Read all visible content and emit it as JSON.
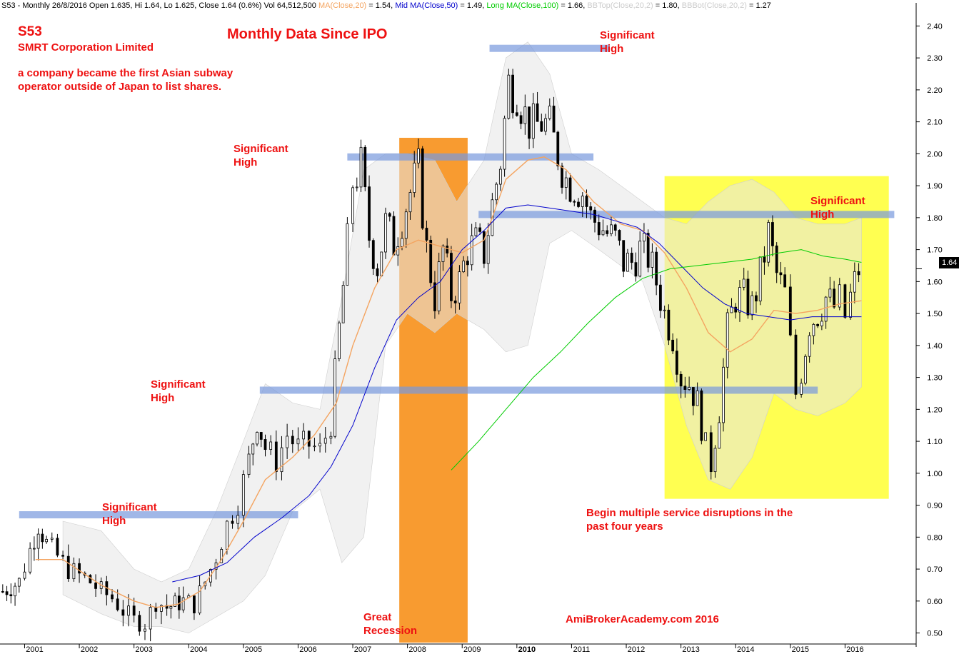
{
  "header": {
    "ticker_line": "S53 - Monthly 26/8/2016 Open 1.635, Hi 1.64, Lo 1.625, Close 1.64 (0.6%) Vol 64,512,500",
    "ma20_label": "MA(Close,20)",
    "ma20_value": " = 1.54,",
    "mid_label": "Mid MA(Close,50)",
    "mid_value": " = 1.49,",
    "long_label": "Long MA(Close,100)",
    "long_value": " = 1.66,",
    "bbtop_label": "BBTop(Close,20,2)",
    "bbtop_value": " = 1.80,",
    "bbbot_label": "BBBot(Close,20,2)",
    "bbbot_value": " = 1.27"
  },
  "titles": {
    "ticker": "S53",
    "company": "SMRT Corporation Limited",
    "description": "a company became the first Asian subway operator outside of Japan to list shares.",
    "main_title": "Monthly Data Since IPO",
    "recession": "Great Recession",
    "disruption": "Begin multiple service disruptions in the past four years",
    "watermark": "AmiBrokerAcademy.com  2016",
    "last_price": "1.64"
  },
  "significant_high_labels": [
    "Significant High",
    "Significant High",
    "Significant High",
    "Significant High",
    "Significant High"
  ],
  "colors": {
    "ma20": "#f4a460",
    "ma50": "#0000cc",
    "ma100": "#00cc00",
    "bollinger_fill": "#e6e6e6",
    "recession_band": "#f7931e",
    "disruption_band": "#ffff33",
    "significant_line": "#7799dd",
    "annotation": "#ee1111"
  },
  "chart_data": {
    "type": "candlestick",
    "title": "Monthly Data Since IPO",
    "y_axis": {
      "ticks": [
        0.5,
        0.6,
        0.7,
        0.8,
        0.9,
        1.0,
        1.1,
        1.2,
        1.3,
        1.4,
        1.5,
        1.6,
        1.7,
        1.8,
        1.9,
        2.0,
        2.1,
        2.2,
        2.3,
        2.4
      ],
      "ylim": [
        0.47,
        2.45
      ],
      "side": "right"
    },
    "x_axis": {
      "labels": [
        "2001",
        "2002",
        "2003",
        "2004",
        "2005",
        "2006",
        "2007",
        "2008",
        "2009",
        "2010",
        "2011",
        "2012",
        "2013",
        "2014",
        "2015",
        "2016"
      ],
      "range": [
        2000.55,
        2017.3
      ]
    },
    "grid": false,
    "candle_anchors": [
      [
        2000.6,
        0.63
      ],
      [
        2000.9,
        0.66
      ],
      [
        2001.1,
        0.76
      ],
      [
        2001.25,
        0.84
      ],
      [
        2001.4,
        0.78
      ],
      [
        2001.6,
        0.74
      ],
      [
        2001.8,
        0.7
      ],
      [
        2002.0,
        0.68
      ],
      [
        2002.2,
        0.66
      ],
      [
        2002.4,
        0.63
      ],
      [
        2002.6,
        0.61
      ],
      [
        2002.8,
        0.57
      ],
      [
        2003.0,
        0.54
      ],
      [
        2003.2,
        0.53
      ],
      [
        2003.4,
        0.6
      ],
      [
        2003.6,
        0.58
      ],
      [
        2003.9,
        0.6
      ],
      [
        2004.1,
        0.59
      ],
      [
        2004.3,
        0.66
      ],
      [
        2004.5,
        0.74
      ],
      [
        2004.7,
        0.84
      ],
      [
        2004.9,
        0.91
      ],
      [
        2005.1,
        1.04
      ],
      [
        2005.25,
        1.17
      ],
      [
        2005.4,
        1.08
      ],
      [
        2005.6,
        1.04
      ],
      [
        2005.8,
        1.12
      ],
      [
        2006.0,
        1.08
      ],
      [
        2006.2,
        1.09
      ],
      [
        2006.4,
        1.07
      ],
      [
        2006.6,
        1.16
      ],
      [
        2006.75,
        1.45
      ],
      [
        2006.9,
        1.72
      ],
      [
        2007.0,
        1.91
      ],
      [
        2007.15,
        1.96
      ],
      [
        2007.3,
        1.74
      ],
      [
        2007.45,
        1.65
      ],
      [
        2007.6,
        1.78
      ],
      [
        2007.75,
        1.72
      ],
      [
        2007.9,
        1.8
      ],
      [
        2008.05,
        1.88
      ],
      [
        2008.2,
        1.95
      ],
      [
        2008.35,
        1.7
      ],
      [
        2008.5,
        1.55
      ],
      [
        2008.65,
        1.7
      ],
      [
        2008.8,
        1.56
      ],
      [
        2008.95,
        1.6
      ],
      [
        2009.1,
        1.7
      ],
      [
        2009.25,
        1.72
      ],
      [
        2009.4,
        1.69
      ],
      [
        2009.55,
        1.84
      ],
      [
        2009.7,
        1.98
      ],
      [
        2009.85,
        2.22
      ],
      [
        2010.0,
        2.2
      ],
      [
        2010.15,
        2.12
      ],
      [
        2010.3,
        2.08
      ],
      [
        2010.45,
        2.1
      ],
      [
        2010.6,
        2.08
      ],
      [
        2010.75,
        2.0
      ],
      [
        2010.9,
        1.92
      ],
      [
        2011.05,
        1.9
      ],
      [
        2011.2,
        1.88
      ],
      [
        2011.35,
        1.8
      ],
      [
        2011.5,
        1.78
      ],
      [
        2011.65,
        1.75
      ],
      [
        2011.8,
        1.73
      ],
      [
        2011.95,
        1.66
      ],
      [
        2012.1,
        1.66
      ],
      [
        2012.25,
        1.7
      ],
      [
        2012.4,
        1.68
      ],
      [
        2012.55,
        1.6
      ],
      [
        2012.7,
        1.5
      ],
      [
        2012.85,
        1.43
      ],
      [
        2013.0,
        1.3
      ],
      [
        2013.15,
        1.28
      ],
      [
        2013.3,
        1.22
      ],
      [
        2013.45,
        1.08
      ],
      [
        2013.55,
        1.03
      ],
      [
        2013.7,
        1.2
      ],
      [
        2013.85,
        1.45
      ],
      [
        2014.0,
        1.55
      ],
      [
        2014.15,
        1.55
      ],
      [
        2014.3,
        1.52
      ],
      [
        2014.45,
        1.62
      ],
      [
        2014.6,
        1.75
      ],
      [
        2014.75,
        1.62
      ],
      [
        2014.9,
        1.56
      ],
      [
        2015.0,
        1.4
      ],
      [
        2015.1,
        1.25
      ],
      [
        2015.2,
        1.32
      ],
      [
        2015.35,
        1.47
      ],
      [
        2015.5,
        1.5
      ],
      [
        2015.65,
        1.55
      ],
      [
        2015.8,
        1.52
      ],
      [
        2015.9,
        1.54
      ],
      [
        2016.0,
        1.49
      ],
      [
        2016.1,
        1.55
      ],
      [
        2016.25,
        1.64
      ]
    ],
    "ma20": [
      [
        2001.2,
        0.73
      ],
      [
        2001.7,
        0.73
      ],
      [
        2002.4,
        0.65
      ],
      [
        2003.0,
        0.6
      ],
      [
        2003.4,
        0.58
      ],
      [
        2003.8,
        0.59
      ],
      [
        2004.2,
        0.63
      ],
      [
        2004.6,
        0.73
      ],
      [
        2005.0,
        0.85
      ],
      [
        2005.4,
        0.98
      ],
      [
        2005.9,
        1.05
      ],
      [
        2006.3,
        1.12
      ],
      [
        2006.7,
        1.22
      ],
      [
        2007.0,
        1.4
      ],
      [
        2007.4,
        1.58
      ],
      [
        2007.8,
        1.7
      ],
      [
        2008.2,
        1.73
      ],
      [
        2008.6,
        1.71
      ],
      [
        2009.0,
        1.69
      ],
      [
        2009.4,
        1.73
      ],
      [
        2009.8,
        1.92
      ],
      [
        2010.2,
        1.98
      ],
      [
        2010.5,
        1.99
      ],
      [
        2010.9,
        1.95
      ],
      [
        2011.4,
        1.85
      ],
      [
        2011.9,
        1.78
      ],
      [
        2012.3,
        1.76
      ],
      [
        2012.7,
        1.69
      ],
      [
        2013.1,
        1.58
      ],
      [
        2013.5,
        1.44
      ],
      [
        2013.9,
        1.38
      ],
      [
        2014.3,
        1.42
      ],
      [
        2014.7,
        1.51
      ],
      [
        2015.1,
        1.5
      ],
      [
        2015.5,
        1.51
      ],
      [
        2015.9,
        1.53
      ],
      [
        2016.3,
        1.54
      ]
    ],
    "ma50": [
      [
        2003.7,
        0.66
      ],
      [
        2004.2,
        0.68
      ],
      [
        2004.7,
        0.72
      ],
      [
        2005.2,
        0.8
      ],
      [
        2005.7,
        0.86
      ],
      [
        2006.2,
        0.93
      ],
      [
        2006.6,
        1.02
      ],
      [
        2007.0,
        1.15
      ],
      [
        2007.4,
        1.33
      ],
      [
        2007.8,
        1.48
      ],
      [
        2008.2,
        1.55
      ],
      [
        2008.6,
        1.6
      ],
      [
        2009.0,
        1.7
      ],
      [
        2009.4,
        1.76
      ],
      [
        2009.8,
        1.83
      ],
      [
        2010.2,
        1.84
      ],
      [
        2010.6,
        1.83
      ],
      [
        2011.0,
        1.82
      ],
      [
        2011.4,
        1.81
      ],
      [
        2011.8,
        1.79
      ],
      [
        2012.2,
        1.77
      ],
      [
        2012.6,
        1.72
      ],
      [
        2013.0,
        1.65
      ],
      [
        2013.4,
        1.58
      ],
      [
        2013.8,
        1.53
      ],
      [
        2014.2,
        1.5
      ],
      [
        2014.6,
        1.49
      ],
      [
        2015.0,
        1.48
      ],
      [
        2015.4,
        1.49
      ],
      [
        2015.9,
        1.49
      ],
      [
        2016.3,
        1.49
      ]
    ],
    "ma100": [
      [
        2008.8,
        1.01
      ],
      [
        2009.3,
        1.1
      ],
      [
        2009.8,
        1.2
      ],
      [
        2010.3,
        1.3
      ],
      [
        2010.8,
        1.38
      ],
      [
        2011.3,
        1.47
      ],
      [
        2011.8,
        1.55
      ],
      [
        2012.3,
        1.61
      ],
      [
        2012.8,
        1.64
      ],
      [
        2013.3,
        1.65
      ],
      [
        2013.8,
        1.66
      ],
      [
        2014.3,
        1.67
      ],
      [
        2014.8,
        1.69
      ],
      [
        2015.2,
        1.7
      ],
      [
        2015.6,
        1.68
      ],
      [
        2016.0,
        1.67
      ],
      [
        2016.3,
        1.66
      ]
    ],
    "bollinger": {
      "upper": [
        [
          2001.7,
          0.85
        ],
        [
          2002.4,
          0.82
        ],
        [
          2003.0,
          0.7
        ],
        [
          2003.5,
          0.66
        ],
        [
          2004.0,
          0.7
        ],
        [
          2004.5,
          0.88
        ],
        [
          2005.0,
          1.1
        ],
        [
          2005.4,
          1.28
        ],
        [
          2005.9,
          1.22
        ],
        [
          2006.4,
          1.2
        ],
        [
          2006.8,
          1.55
        ],
        [
          2007.2,
          1.95
        ],
        [
          2007.6,
          2.0
        ],
        [
          2008.0,
          2.0
        ],
        [
          2008.5,
          1.98
        ],
        [
          2008.9,
          1.85
        ],
        [
          2009.4,
          1.98
        ],
        [
          2009.8,
          2.3
        ],
        [
          2010.2,
          2.35
        ],
        [
          2010.6,
          2.25
        ],
        [
          2011.0,
          2.0
        ],
        [
          2011.5,
          1.95
        ],
        [
          2011.9,
          1.9
        ],
        [
          2012.3,
          1.85
        ],
        [
          2012.7,
          1.8
        ],
        [
          2013.1,
          1.78
        ],
        [
          2013.5,
          1.85
        ],
        [
          2013.9,
          1.9
        ],
        [
          2014.3,
          1.92
        ],
        [
          2014.7,
          1.88
        ],
        [
          2015.1,
          1.8
        ],
        [
          2015.5,
          1.78
        ],
        [
          2016.0,
          1.78
        ],
        [
          2016.3,
          1.8
        ]
      ],
      "lower": [
        [
          2001.7,
          0.62
        ],
        [
          2002.4,
          0.56
        ],
        [
          2003.0,
          0.52
        ],
        [
          2003.5,
          0.52
        ],
        [
          2004.0,
          0.5
        ],
        [
          2004.5,
          0.55
        ],
        [
          2005.0,
          0.6
        ],
        [
          2005.4,
          0.68
        ],
        [
          2005.9,
          0.88
        ],
        [
          2006.4,
          0.95
        ],
        [
          2006.8,
          0.72
        ],
        [
          2007.2,
          0.8
        ],
        [
          2007.6,
          1.4
        ],
        [
          2008.0,
          1.5
        ],
        [
          2008.5,
          1.44
        ],
        [
          2008.9,
          1.5
        ],
        [
          2009.4,
          1.45
        ],
        [
          2009.8,
          1.38
        ],
        [
          2010.2,
          1.4
        ],
        [
          2010.6,
          1.72
        ],
        [
          2011.0,
          1.76
        ],
        [
          2011.5,
          1.7
        ],
        [
          2011.9,
          1.65
        ],
        [
          2012.3,
          1.6
        ],
        [
          2012.7,
          1.4
        ],
        [
          2013.1,
          1.15
        ],
        [
          2013.5,
          0.98
        ],
        [
          2013.9,
          0.95
        ],
        [
          2014.3,
          1.05
        ],
        [
          2014.7,
          1.25
        ],
        [
          2015.1,
          1.2
        ],
        [
          2015.5,
          1.18
        ],
        [
          2016.0,
          1.22
        ],
        [
          2016.3,
          1.27
        ]
      ]
    },
    "significant_high_lines": [
      {
        "level": 0.87,
        "from": 2000.9,
        "to": 2006.0
      },
      {
        "level": 1.26,
        "from": 2005.3,
        "to": 2015.5
      },
      {
        "level": 1.99,
        "from": 2006.9,
        "to": 2011.4
      },
      {
        "level": 1.81,
        "from": 2009.3,
        "to": 2016.9
      },
      {
        "level": 2.33,
        "from": 2009.5,
        "to": 2011.7
      }
    ],
    "recession_band": {
      "from": 2007.85,
      "to": 2009.1,
      "top": 2.05,
      "bottom": 0.47
    },
    "disruption_band": {
      "from": 2012.7,
      "to": 2016.8,
      "top": 1.93,
      "bottom": 0.92
    },
    "last_value": 1.64
  }
}
